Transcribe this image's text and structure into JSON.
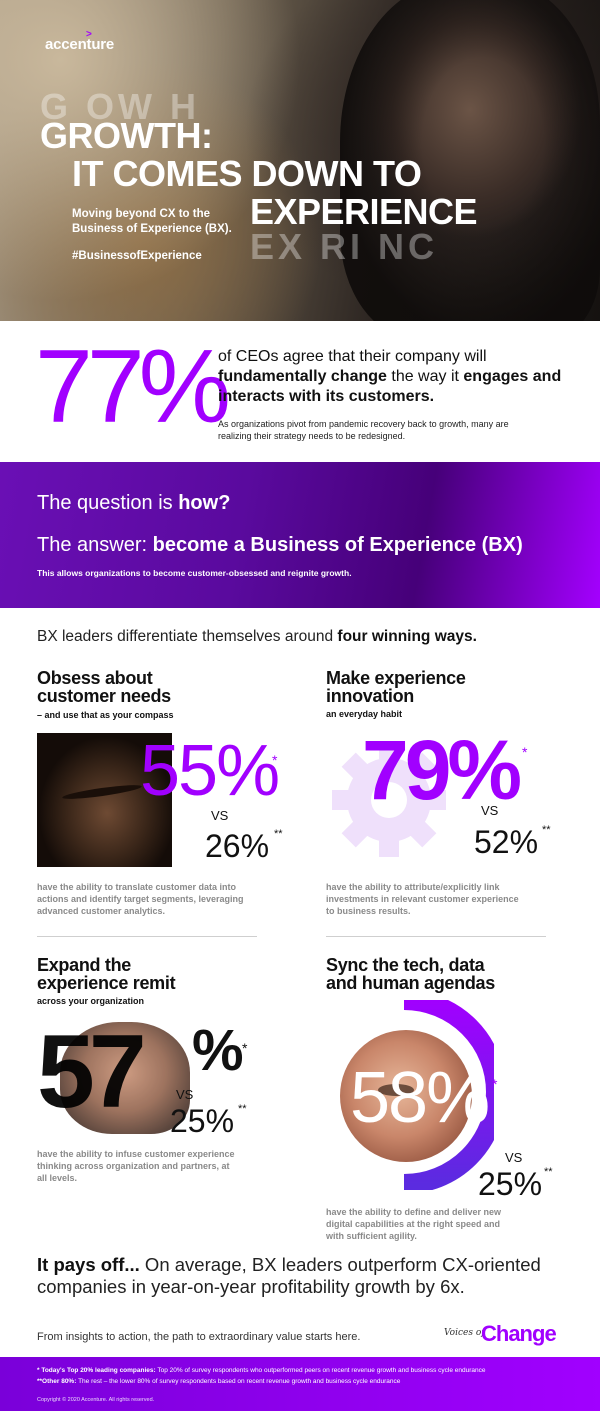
{
  "hero": {
    "logo": "accenture",
    "logo_mark": ">",
    "ghost_top": "G OW H",
    "title_line1": "GROWTH:",
    "title_line2": "IT COMES DOWN TO",
    "title_line3": "EXPERIENCE",
    "ghost_bottom": "EX   RI  NC",
    "subtitle": "Moving beyond CX to the Business of Experience (BX).",
    "hashtag": "#BusinessofExperience"
  },
  "ceo_stat": {
    "value": "77%",
    "text_pre": "of CEOs agree that their company will ",
    "text_bold1": "fundamentally change",
    "text_mid": " the way it ",
    "text_bold2": "engages and interacts with its customers.",
    "note": "As organizations pivot from pandemic recovery back to growth, many are realizing their strategy needs to be redesigned."
  },
  "band": {
    "q_pre": "The question is ",
    "q_bold": "how?",
    "a_pre": "The answer: ",
    "a_bold": "become a Business of Experience (BX)",
    "note": "This allows organizations to become customer-obsessed and reignite growth."
  },
  "intro": {
    "pre": "BX leaders differentiate themselves around ",
    "bold": "four winning ways."
  },
  "ways": [
    {
      "title1": "Obsess about",
      "title2": "customer needs",
      "sub": "– and use that as your compass",
      "value": "55%",
      "star": "*",
      "vs": "VS",
      "compare": "26%",
      "compare_star": "**",
      "desc": "have the ability to translate customer data into actions and identify target segments, leveraging advanced customer analytics."
    },
    {
      "title1": "Make experience",
      "title2": "innovation",
      "sub": "an everyday habit",
      "value": "79%",
      "star": "*",
      "vs": "VS",
      "compare": "52%",
      "compare_star": "**",
      "desc": "have the ability to attribute/explicitly link investments in relevant customer experience to business results."
    },
    {
      "title1": "Expand the",
      "title2": "experience remit",
      "sub": "across your organization",
      "value_num": "57",
      "value_pct": "%",
      "star": "*",
      "vs": "VS",
      "compare": "25%",
      "compare_star": "**",
      "desc": "have the ability to infuse customer experience thinking across organization and partners, at all levels."
    },
    {
      "title1": "Sync the tech, data",
      "title2": "and human agendas",
      "value": "58%",
      "star": "*",
      "vs": "VS",
      "compare": "25%",
      "compare_star": "**",
      "desc": "have the ability to define and deliver new digital capabilities at the right speed and with sufficient agility."
    }
  ],
  "payoff": {
    "bold": "It pays off...",
    "text": " On average, BX leaders outperform CX-oriented companies in year-on-year profitability growth by 6x."
  },
  "cta": "From insights to action, the path to extraordinary value starts here.",
  "brand": {
    "voices": "Voices of",
    "change": "Change"
  },
  "footer": {
    "note1_bold": "* Today's Top 20% leading companies:",
    "note1": " Top 20% of survey respondents who outperformed peers on recent revenue growth and business cycle endurance",
    "note2_bold": "**Other 80%:",
    "note2": " The rest – the lower 80% of survey respondents based on recent revenue growth and business cycle endurance",
    "copyright": "Copyright © 2020 Accenture. All rights reserved."
  },
  "colors": {
    "accent": "#a100ff",
    "band_dark": "#460079"
  }
}
